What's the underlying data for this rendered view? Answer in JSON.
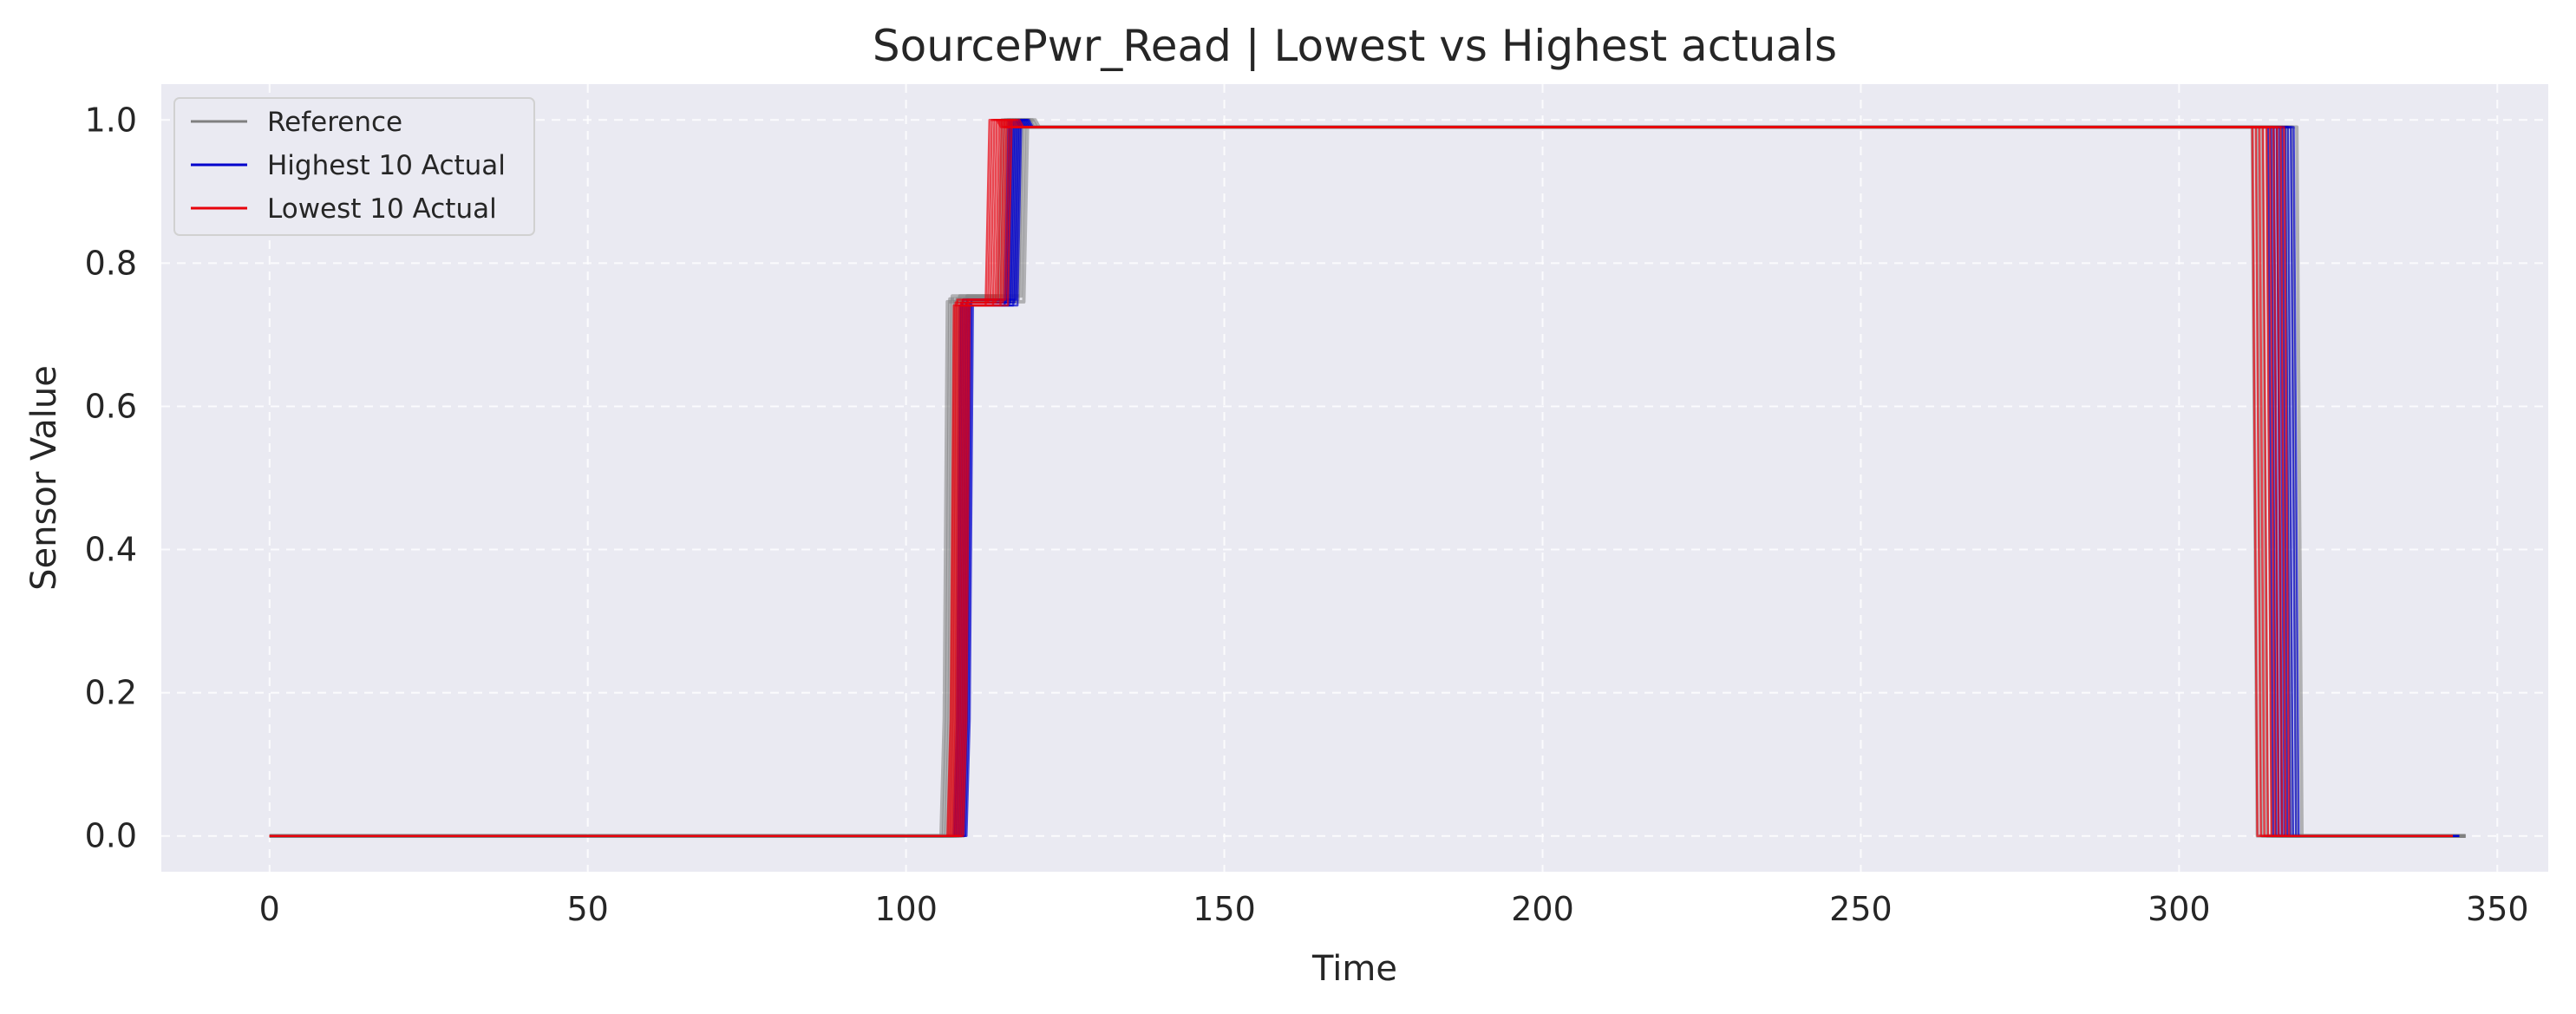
{
  "chart_data": {
    "type": "line",
    "title": "SourcePwr_Read | Lowest vs Highest actuals",
    "xlabel": "Time",
    "ylabel": "Sensor Value",
    "xlim": [
      -17,
      358
    ],
    "ylim": [
      -0.05,
      1.05
    ],
    "xticks": [
      0,
      50,
      100,
      150,
      200,
      250,
      300,
      350
    ],
    "yticks": [
      0.0,
      0.2,
      0.4,
      0.6,
      0.8,
      1.0
    ],
    "xtick_labels": [
      "0",
      "50",
      "100",
      "150",
      "200",
      "250",
      "300",
      "350"
    ],
    "ytick_labels": [
      "0.0",
      "0.2",
      "0.4",
      "0.6",
      "0.8",
      "1.0"
    ],
    "grid": true,
    "legend_position": "upper-left",
    "background_color": "#eaeaf2",
    "series": [
      {
        "name": "Reference",
        "color": "#808080",
        "count": 10,
        "rise_start": 105.5,
        "rise_end": 109.0,
        "step2_start": 114.5,
        "step2_end": 118.5,
        "fall_start": 311.5,
        "fall_end": 318.5,
        "x_end": 345,
        "plateau1": 0.75,
        "plateau2": 0.99
      },
      {
        "name": "Highest 10 Actual",
        "color": "#0000cc",
        "count": 10,
        "rise_start": 107.5,
        "rise_end": 109.5,
        "step2_start": 115.5,
        "step2_end": 117.5,
        "fall_start": 314.0,
        "fall_end": 318.0,
        "x_end": 344,
        "plateau1": 0.745,
        "plateau2": 0.99
      },
      {
        "name": "Lowest 10 Actual",
        "color": "#e8000b",
        "count": 10,
        "rise_start": 106.5,
        "rise_end": 109.0,
        "step2_start": 112.5,
        "step2_end": 116.0,
        "fall_start": 311.5,
        "fall_end": 316.5,
        "x_end": 343,
        "plateau1": 0.745,
        "plateau2": 0.99
      }
    ]
  }
}
